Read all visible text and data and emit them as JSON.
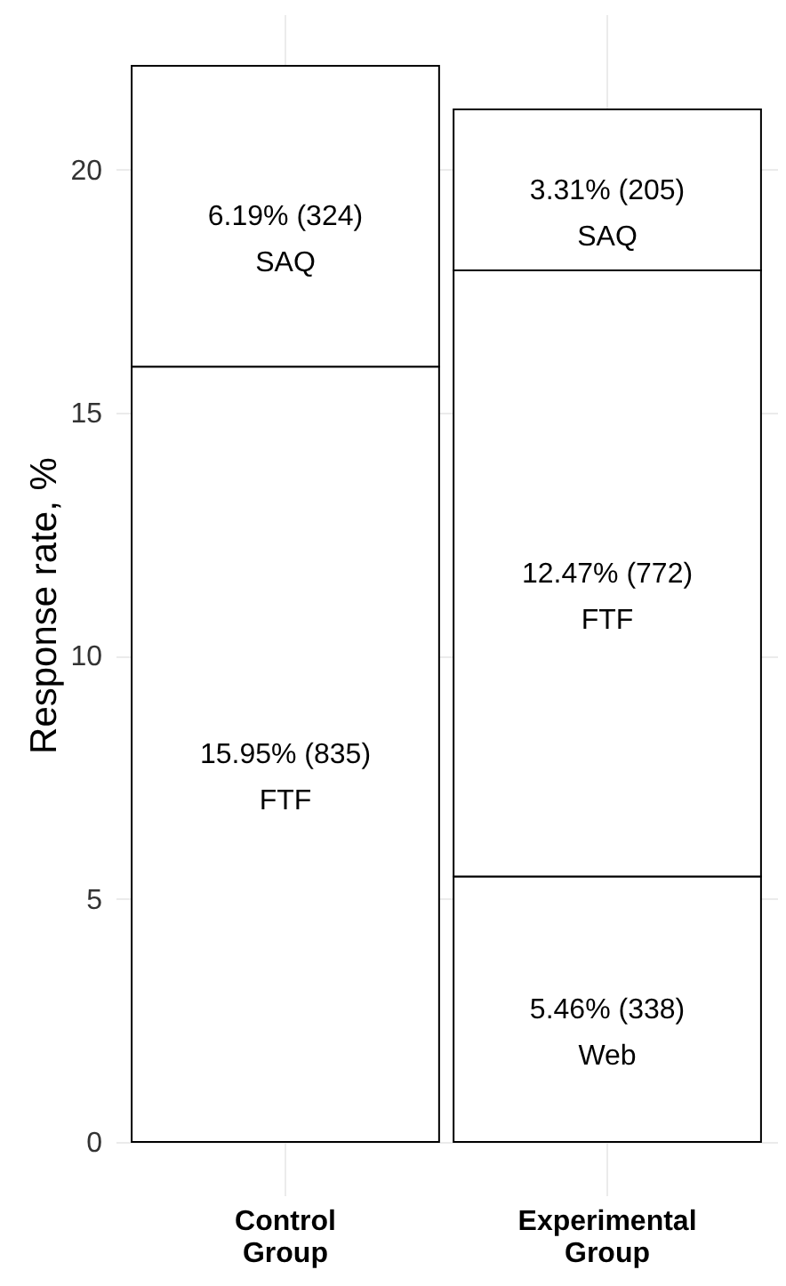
{
  "chart_data": {
    "type": "bar",
    "stacked": true,
    "ylabel": "Response rate, %",
    "categories": [
      "Control Group",
      "Experimental Group"
    ],
    "series": [
      {
        "name": "Web",
        "color": "#ffffff",
        "values": [
          null,
          5.46
        ],
        "value_labels": [
          null,
          "5.46% (338)"
        ]
      },
      {
        "name": "FTF",
        "color": "#ffffff",
        "values": [
          15.95,
          12.47
        ],
        "value_labels": [
          "15.95% (835)",
          "12.47% (772)"
        ]
      },
      {
        "name": "SAQ",
        "color": "#ffffff",
        "values": [
          6.19,
          3.31
        ],
        "value_labels": [
          "6.19% (324)",
          "3.31% (205)"
        ]
      }
    ],
    "ylim": [
      -1.1,
      23.2
    ],
    "yticks": [
      0,
      5,
      10,
      15,
      20
    ],
    "grid": true
  }
}
